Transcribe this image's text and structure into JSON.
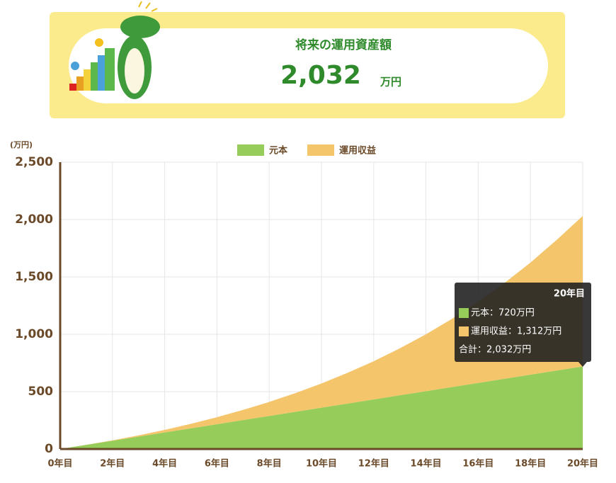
{
  "header": {
    "title": "将来の運用資産額",
    "amount": "2,032",
    "unit": "万円"
  },
  "chart_data": {
    "type": "area",
    "stacked": true,
    "y_unit": "(万円)",
    "categories": [
      "0年目",
      null,
      "2年目",
      null,
      "4年目",
      null,
      "6年目",
      null,
      "8年目",
      null,
      "10年目",
      null,
      "12年目",
      null,
      "14年目",
      null,
      "16年目",
      null,
      "18年目",
      null,
      "20年目"
    ],
    "series": [
      {
        "name": "元本",
        "color": "#96cc5a",
        "values": [
          0,
          36,
          72,
          108,
          144,
          180,
          216,
          252,
          288,
          324,
          360,
          396,
          432,
          468,
          504,
          540,
          576,
          612,
          648,
          684,
          720
        ]
      },
      {
        "name": "運用収益",
        "color": "#f5c56b",
        "values": [
          0,
          1,
          4,
          11,
          23,
          39,
          61,
          89,
          122,
          163,
          211,
          268,
          333,
          409,
          496,
          595,
          707,
          834,
          977,
          1138,
          1312
        ]
      }
    ],
    "ylim": [
      0,
      2500
    ],
    "yticks": [
      0,
      500,
      {
        "value": 1000,
        "label": "1,000"
      },
      {
        "value": 1500,
        "label": "1,500"
      },
      {
        "value": 2000,
        "label": "2,000"
      },
      {
        "value": 2500,
        "label": "2,500"
      }
    ],
    "grid": true,
    "legend": "top",
    "tooltip": {
      "title": "20年目",
      "rows": [
        "元本：720万円",
        "運用収益：1,312万円",
        "合計：2,032万円"
      ]
    }
  }
}
